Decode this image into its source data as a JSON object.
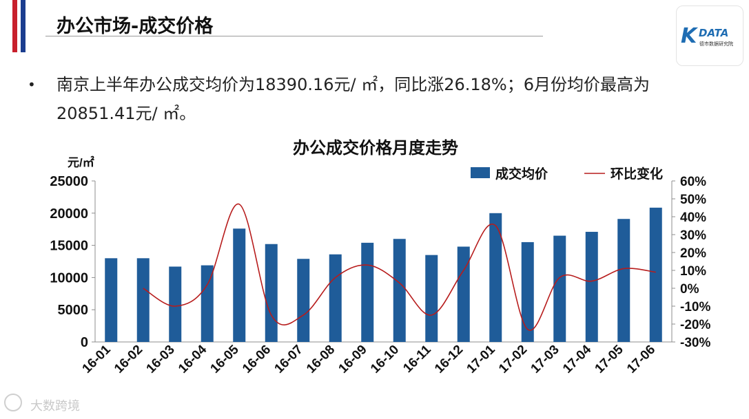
{
  "slide": {
    "title": "办公市场-成交价格",
    "bullet": "南京上半年办公成交均价为18390.16元/ ㎡，同比涨26.18%；6月份均价最高为20851.41元/ ㎡。",
    "bullet_marker": "•",
    "logo_text": "DATA",
    "logo_mark": "K",
    "logo_sub": "德市数据研究院",
    "watermark": "大数跨境",
    "colors": {
      "stripe_red": "#c8202c",
      "stripe_blue": "#1b3d8f",
      "bar": "#1f5c99",
      "line": "#b71c1c"
    }
  },
  "chart_data": {
    "type": "bar",
    "title": "办公成交价格月度走势",
    "y_unit": "元/㎡",
    "categories": [
      "16-01",
      "16-02",
      "16-03",
      "16-04",
      "16-05",
      "16-06",
      "16-07",
      "16-08",
      "16-09",
      "16-10",
      "16-11",
      "16-12",
      "17-01",
      "17-02",
      "17-03",
      "17-04",
      "17-05",
      "17-06"
    ],
    "series": [
      {
        "name": "成交均价",
        "type": "bar",
        "axis": "left",
        "values": [
          13000,
          13000,
          11700,
          11900,
          17600,
          15200,
          12900,
          13600,
          15400,
          16000,
          13500,
          14800,
          20000,
          15500,
          16500,
          17100,
          19100,
          20851.41
        ]
      },
      {
        "name": "环比变化",
        "type": "line",
        "axis": "right",
        "values": [
          null,
          0,
          -10,
          2,
          47,
          -15,
          -15,
          6,
          13,
          3,
          -15,
          10,
          35,
          -23,
          6,
          4,
          11,
          9
        ]
      }
    ],
    "y_left": {
      "min": 0,
      "max": 25000,
      "ticks": [
        0,
        5000,
        10000,
        15000,
        20000,
        25000
      ]
    },
    "y_right": {
      "min": -30,
      "max": 60,
      "ticks": [
        "-30%",
        "-20%",
        "-10%",
        "0%",
        "10%",
        "20%",
        "30%",
        "40%",
        "50%",
        "60%"
      ]
    },
    "legend_position": "top-right",
    "grid": false
  }
}
